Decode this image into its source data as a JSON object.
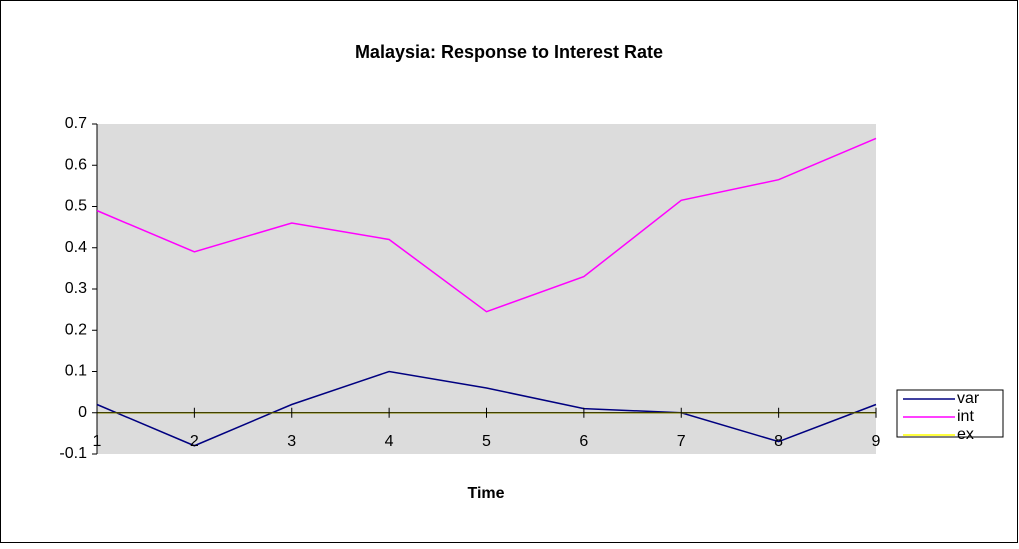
{
  "chart_data": {
    "type": "line",
    "title": "Malaysia: Response to Interest Rate",
    "x_label": "Time",
    "x": [
      1,
      2,
      3,
      4,
      5,
      6,
      7,
      8,
      9
    ],
    "xlim": [
      1,
      9
    ],
    "xticks": [
      1,
      2,
      3,
      4,
      5,
      6,
      7,
      8,
      9
    ],
    "ylim": [
      -0.1,
      0.7
    ],
    "yticks": [
      -0.1,
      0,
      0.1,
      0.2,
      0.3,
      0.4,
      0.5,
      0.6,
      0.7
    ],
    "legend": "right",
    "series": [
      {
        "name": "var",
        "color": "#000080",
        "values": [
          0.02,
          -0.08,
          0.02,
          0.1,
          0.06,
          0.01,
          0.0,
          -0.07,
          0.02
        ]
      },
      {
        "name": "int",
        "color": "#ff00ff",
        "values": [
          0.49,
          0.39,
          0.46,
          0.42,
          0.245,
          0.33,
          0.515,
          0.565,
          0.665
        ]
      },
      {
        "name": "ex",
        "color": "#ffff00",
        "values": [
          0,
          0,
          0,
          0,
          0,
          0,
          0,
          0,
          0
        ]
      }
    ]
  }
}
